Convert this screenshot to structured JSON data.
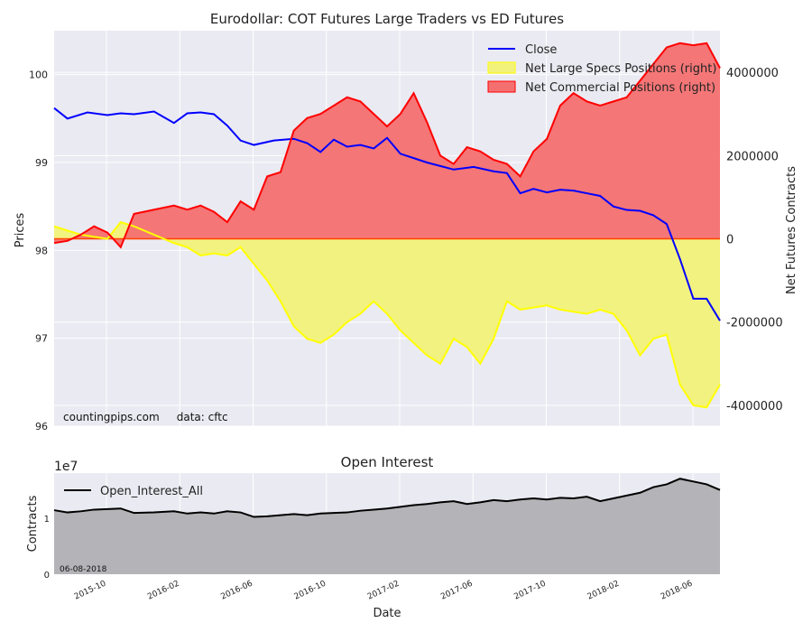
{
  "chart_data": [
    {
      "type": "area",
      "title": "Eurodollar: COT Futures Large Traders vs ED Futures",
      "xlabel": "",
      "ylabel": "Prices",
      "ylabel_right": "Net Futures Contracts",
      "x_range": [
        "2015-07-21",
        "2018-06-12"
      ],
      "ylim_left": [
        96,
        100.5
      ],
      "ylim_right": [
        -4500000,
        5000000
      ],
      "yticks_left": [
        "96",
        "97",
        "98",
        "99",
        "100"
      ],
      "yticks_right": [
        "-4000000",
        "-2000000",
        "0",
        "2000000",
        "4000000"
      ],
      "legend_position": "top-right",
      "annotation": "countingpips.com     data: cftc",
      "series": [
        {
          "name": "Close",
          "color": "#0000ff",
          "axis": "left",
          "x": [
            0,
            2,
            5,
            8,
            10,
            12,
            15,
            18,
            20,
            22,
            24,
            26,
            28,
            30,
            33,
            36,
            38,
            40,
            42,
            44,
            46,
            48,
            50,
            52,
            54,
            56,
            58,
            60,
            63,
            66,
            68,
            70,
            72,
            74,
            76,
            78,
            80,
            82,
            84,
            86,
            88,
            90,
            92,
            94,
            96,
            98,
            100
          ],
          "values": [
            99.62,
            99.5,
            99.57,
            99.54,
            99.56,
            99.55,
            99.58,
            99.45,
            99.56,
            99.57,
            99.55,
            99.42,
            99.25,
            99.2,
            99.25,
            99.27,
            99.22,
            99.12,
            99.26,
            99.18,
            99.2,
            99.16,
            99.28,
            99.1,
            99.05,
            99.0,
            98.96,
            98.92,
            98.95,
            98.9,
            98.88,
            98.65,
            98.7,
            98.66,
            98.69,
            98.68,
            98.65,
            98.62,
            98.5,
            98.46,
            98.45,
            98.4,
            98.3,
            97.9,
            97.45,
            97.45,
            97.2
          ]
        },
        {
          "name": "Net Large Specs Positions (right)",
          "color": "#ffff00",
          "fill": "#f2f27a",
          "axis": "right",
          "x": [
            0,
            2,
            4,
            6,
            8,
            10,
            12,
            15,
            18,
            20,
            22,
            24,
            26,
            28,
            30,
            32,
            34,
            36,
            38,
            40,
            42,
            44,
            46,
            48,
            50,
            52,
            54,
            56,
            58,
            60,
            62,
            64,
            66,
            68,
            70,
            72,
            74,
            76,
            78,
            80,
            82,
            84,
            86,
            88,
            90,
            92,
            94,
            96,
            98,
            100
          ],
          "values": [
            300000,
            200000,
            100000,
            50000,
            0,
            400000,
            300000,
            100000,
            -100000,
            -200000,
            -400000,
            -350000,
            -400000,
            -200000,
            -600000,
            -1000000,
            -1500000,
            -2100000,
            -2400000,
            -2500000,
            -2300000,
            -2000000,
            -1800000,
            -1500000,
            -1800000,
            -2200000,
            -2500000,
            -2800000,
            -3000000,
            -2400000,
            -2600000,
            -3000000,
            -2400000,
            -1500000,
            -1700000,
            -1650000,
            -1600000,
            -1700000,
            -1750000,
            -1800000,
            -1700000,
            -1800000,
            -2200000,
            -2800000,
            -2400000,
            -2300000,
            -3500000,
            -4000000,
            -4050000,
            -3500000
          ]
        },
        {
          "name": "Net Commercial Positions (right)",
          "color": "#ff0000",
          "fill": "#f47070",
          "axis": "right",
          "x": [
            0,
            2,
            4,
            6,
            8,
            10,
            12,
            15,
            18,
            20,
            22,
            24,
            26,
            28,
            30,
            32,
            34,
            36,
            38,
            40,
            42,
            44,
            46,
            48,
            50,
            52,
            54,
            56,
            58,
            60,
            62,
            64,
            66,
            68,
            70,
            72,
            74,
            76,
            78,
            80,
            82,
            84,
            86,
            88,
            90,
            92,
            94,
            96,
            98,
            100
          ],
          "values": [
            -100000,
            -50000,
            100000,
            300000,
            150000,
            -200000,
            600000,
            700000,
            800000,
            700000,
            800000,
            650000,
            400000,
            900000,
            700000,
            1500000,
            1600000,
            2600000,
            2900000,
            3000000,
            3200000,
            3400000,
            3300000,
            3000000,
            2700000,
            3000000,
            3500000,
            2800000,
            2000000,
            1800000,
            2200000,
            2100000,
            1900000,
            1800000,
            1500000,
            2100000,
            2400000,
            3200000,
            3500000,
            3300000,
            3200000,
            3300000,
            3400000,
            3800000,
            4200000,
            4600000,
            4700000,
            4650000,
            4700000,
            4100000
          ]
        }
      ]
    },
    {
      "type": "area",
      "title": "Open Interest",
      "xlabel": "Date",
      "ylabel": "Contracts",
      "scale_label": "1e7",
      "ylim": [
        0,
        1.8
      ],
      "yticks": [
        "0",
        "1"
      ],
      "xticks": [
        "2015-10",
        "2016-02",
        "2016-06",
        "2016-10",
        "2017-02",
        "2017-06",
        "2017-10",
        "2018-02",
        "2018-06"
      ],
      "legend_position": "top-left",
      "annotation": "06-08-2018",
      "series": [
        {
          "name": "Open_Interest_All",
          "color": "#000000",
          "fill": "#b4b4b8",
          "x": [
            0,
            2,
            4,
            6,
            8,
            10,
            12,
            15,
            18,
            20,
            22,
            24,
            26,
            28,
            30,
            32,
            34,
            36,
            38,
            40,
            42,
            44,
            46,
            48,
            50,
            52,
            54,
            56,
            58,
            60,
            62,
            64,
            66,
            68,
            70,
            72,
            74,
            76,
            78,
            80,
            82,
            84,
            86,
            88,
            90,
            92,
            94,
            96,
            98,
            100
          ],
          "values": [
            1.14,
            1.1,
            1.12,
            1.15,
            1.16,
            1.17,
            1.09,
            1.1,
            1.12,
            1.08,
            1.1,
            1.08,
            1.12,
            1.1,
            1.02,
            1.03,
            1.05,
            1.07,
            1.05,
            1.08,
            1.09,
            1.1,
            1.13,
            1.15,
            1.17,
            1.2,
            1.23,
            1.25,
            1.28,
            1.3,
            1.25,
            1.28,
            1.32,
            1.3,
            1.33,
            1.35,
            1.33,
            1.36,
            1.35,
            1.38,
            1.3,
            1.35,
            1.4,
            1.45,
            1.55,
            1.6,
            1.7,
            1.65,
            1.6,
            1.5
          ]
        }
      ]
    }
  ]
}
